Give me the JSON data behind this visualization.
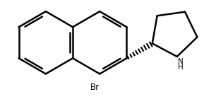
{
  "background_color": "#ffffff",
  "line_color": "#000000",
  "line_width": 1.8,
  "figsize": [
    3.06,
    1.47
  ],
  "dpi": 100,
  "br_label": "Br",
  "n_label": "N",
  "h_label": "H"
}
